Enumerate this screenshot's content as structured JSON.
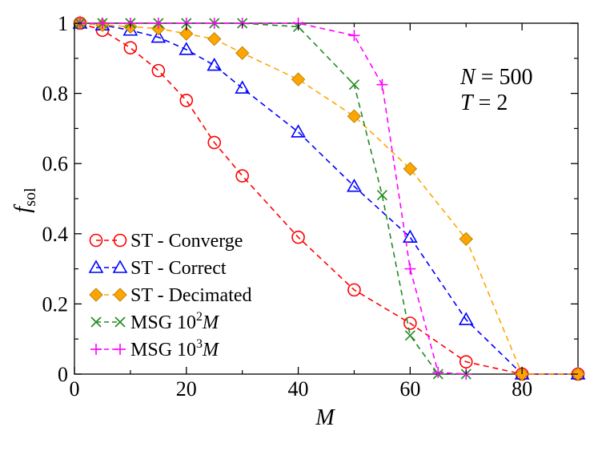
{
  "chart_data": {
    "type": "line",
    "xlabel": "M",
    "ylabel": "f",
    "ylabel_sub": "sol",
    "xlim": [
      0,
      90
    ],
    "ylim": [
      0,
      1
    ],
    "xticks": [
      0,
      20,
      40,
      60,
      80
    ],
    "yticks": [
      0,
      0.2,
      0.4,
      0.6,
      0.8,
      1
    ],
    "xtick_labels": [
      "0",
      "20",
      "40",
      "60",
      "80"
    ],
    "ytick_labels": [
      "0",
      "0.2",
      "0.4",
      "0.6",
      "0.8",
      "1"
    ],
    "grid": false,
    "legend_position": "bottom-left",
    "annotations": [
      {
        "var": "N",
        "rest": " = 500"
      },
      {
        "var": "T",
        "rest": " = 2"
      }
    ],
    "series": [
      {
        "legend": "ST - Converge",
        "color": "#ff0000",
        "marker": "circle",
        "x": [
          1,
          5,
          10,
          15,
          20,
          25,
          30,
          40,
          50,
          60,
          70,
          80,
          90
        ],
        "y": [
          1.0,
          0.98,
          0.93,
          0.865,
          0.78,
          0.66,
          0.565,
          0.39,
          0.24,
          0.145,
          0.035,
          0.0,
          0.0
        ]
      },
      {
        "legend": "ST - Correct",
        "color": "#0000ff",
        "marker": "triangle",
        "x": [
          1,
          5,
          10,
          15,
          20,
          25,
          30,
          40,
          50,
          60,
          70,
          80,
          90
        ],
        "y": [
          1.0,
          0.995,
          0.98,
          0.96,
          0.925,
          0.88,
          0.815,
          0.69,
          0.535,
          0.39,
          0.155,
          0.0,
          0.0
        ]
      },
      {
        "legend": "ST - Decimated",
        "color": "#ffa500",
        "marker": "diamond",
        "x": [
          1,
          5,
          10,
          15,
          20,
          25,
          30,
          40,
          50,
          60,
          70,
          80,
          90
        ],
        "y": [
          1.0,
          0.995,
          0.99,
          0.985,
          0.97,
          0.955,
          0.915,
          0.84,
          0.735,
          0.585,
          0.385,
          0.0,
          0.0
        ]
      },
      {
        "legend": "MSG 10",
        "legend_sup": "2",
        "legend_var": "M",
        "color": "#228b22",
        "marker": "x",
        "x": [
          1,
          5,
          10,
          15,
          20,
          25,
          30,
          40,
          50,
          55,
          60,
          65,
          70
        ],
        "y": [
          1.0,
          1.0,
          1.0,
          1.0,
          1.0,
          1.0,
          1.0,
          0.99,
          0.825,
          0.51,
          0.11,
          0.0,
          0.0
        ]
      },
      {
        "legend": "MSG 10",
        "legend_sup": "3",
        "legend_var": "M",
        "color": "#ff00ff",
        "marker": "plus",
        "x": [
          1,
          5,
          10,
          15,
          20,
          25,
          30,
          40,
          50,
          55,
          60,
          65,
          70
        ],
        "y": [
          1.0,
          1.0,
          1.0,
          1.0,
          1.0,
          1.0,
          1.0,
          1.0,
          0.965,
          0.825,
          0.3,
          0.005,
          0.0
        ]
      }
    ]
  }
}
